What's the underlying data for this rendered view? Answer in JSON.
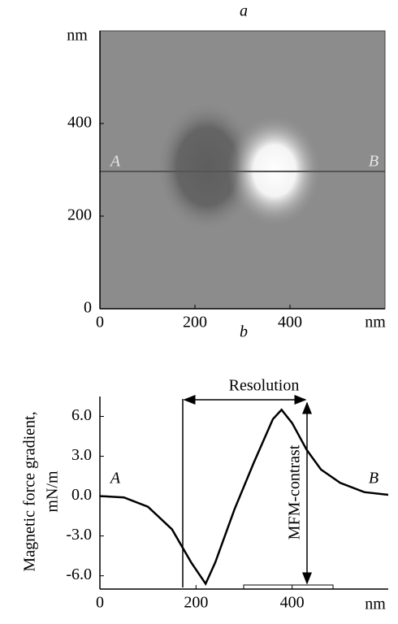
{
  "chart_data": [
    {
      "type": "image",
      "title": "a",
      "x_unit": "nm",
      "y_unit": "nm",
      "xlim": [
        0,
        600
      ],
      "ylim": [
        0,
        600
      ],
      "xticks": [
        0,
        200,
        400
      ],
      "yticks": [
        0,
        200,
        400
      ],
      "annotations": [
        "A",
        "B"
      ]
    },
    {
      "type": "line",
      "title": "b",
      "y_label": [
        "Magnetic force gradient,",
        "mN/m"
      ],
      "x_unit": "nm",
      "x": [
        0,
        50,
        100,
        150,
        190,
        220,
        240,
        280,
        320,
        360,
        378,
        400,
        430,
        460,
        500,
        550,
        600
      ],
      "values": [
        0,
        -0.1,
        -0.8,
        -2.5,
        -5,
        -6.6,
        -5,
        -1,
        2.5,
        5.8,
        6.5,
        5.5,
        3.5,
        2,
        1,
        0.3,
        0.1
      ],
      "color": "#000000",
      "xlim": [
        0,
        600
      ],
      "ylim": [
        -7,
        7.5
      ],
      "xticks": [
        0,
        200,
        400
      ],
      "yticks": [
        {
          "value": -6,
          "label": "-6.0"
        },
        {
          "value": -3,
          "label": "-3.0"
        },
        {
          "value": 0,
          "label": "0.0"
        },
        {
          "value": 3,
          "label": "3.0"
        },
        {
          "value": 6,
          "label": "6.0"
        }
      ],
      "annotations": [
        "A",
        "B",
        "Resolution",
        "MFM-contrast"
      ]
    }
  ]
}
